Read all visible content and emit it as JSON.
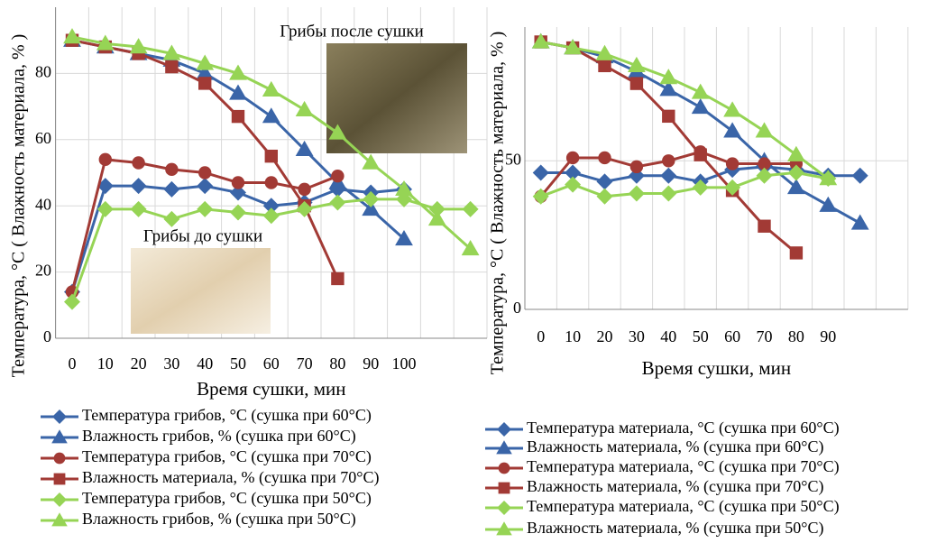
{
  "chart_data": [
    {
      "type": "line",
      "annotations": [
        "Грибы после сушки",
        "Грибы до сушки"
      ],
      "x_label": "Время сушки, мин",
      "y_label": "Температура, °С ( Влажность материала, % )",
      "categories": [
        "0",
        "10",
        "20",
        "30",
        "40",
        "50",
        "60",
        "70",
        "80",
        "90",
        "100",
        null,
        null
      ],
      "ylim": [
        0,
        100
      ],
      "yticks": [
        0,
        20,
        40,
        60,
        80
      ],
      "grid": true,
      "series": [
        {
          "name": "Температура грибов, °С (сушка при 60°С)",
          "color": "#3a65a8",
          "marker": "diamond",
          "values": [
            14,
            46,
            46,
            45,
            46,
            44,
            40,
            41,
            45,
            44,
            45,
            null,
            null
          ]
        },
        {
          "name": "Влажность грибов, % (сушка при 60°С)",
          "color": "#3a65a8",
          "marker": "triangle",
          "values": [
            90,
            88,
            86,
            84,
            80,
            74,
            67,
            57,
            47,
            39,
            30,
            null,
            null
          ]
        },
        {
          "name": "Температура грибов, °С (сушка при 70°С)",
          "color": "#a23a35",
          "marker": "circle",
          "values": [
            14,
            54,
            53,
            51,
            50,
            47,
            47,
            45,
            49,
            null,
            null,
            null,
            null
          ]
        },
        {
          "name": "Влажность  материала, % (сушка при 70°С)",
          "color": "#a23a35",
          "marker": "square",
          "values": [
            90,
            88,
            86,
            82,
            77,
            67,
            55,
            40,
            18,
            null,
            null,
            null,
            null
          ]
        },
        {
          "name": "Температура грибов, °С (сушка при 50°С)",
          "color": "#96d455",
          "marker": "diamond",
          "values": [
            11,
            39,
            39,
            36,
            39,
            38,
            37,
            39,
            41,
            42,
            42,
            39,
            39
          ]
        },
        {
          "name": "Влажность грибов, % (сушка при 50°С)",
          "color": "#96d455",
          "marker": "triangle",
          "values": [
            91,
            89,
            88,
            86,
            83,
            80,
            75,
            69,
            62,
            53,
            45,
            36,
            27
          ]
        }
      ]
    },
    {
      "type": "line",
      "x_label": "Время сушки, мин",
      "y_label": "Температура, °С ( Влажность материала, % )",
      "categories": [
        "0",
        "10",
        "20",
        "30",
        "40",
        "50",
        "60",
        "70",
        "80",
        "90",
        null,
        null
      ],
      "ylim": [
        0,
        95
      ],
      "yticks": [
        0,
        50
      ],
      "grid": true,
      "series": [
        {
          "name": "Температура материала, °С (сушка при 60°С)",
          "color": "#3a65a8",
          "marker": "diamond",
          "values": [
            46,
            46,
            43,
            45,
            45,
            43,
            47,
            48,
            47,
            45,
            45,
            null
          ]
        },
        {
          "name": "Влажность  материала, % (сушка при 60°С)",
          "color": "#3a65a8",
          "marker": "triangle",
          "values": [
            90,
            88,
            85,
            80,
            74,
            68,
            60,
            50,
            41,
            35,
            29,
            null
          ]
        },
        {
          "name": "Температура материала, °С (сушка при 70°С)",
          "color": "#a23a35",
          "marker": "circle",
          "values": [
            38,
            51,
            51,
            48,
            50,
            53,
            49,
            49,
            49,
            null,
            null,
            null
          ]
        },
        {
          "name": "Влажность  материала, % (сушка при 70°С)",
          "color": "#a23a35",
          "marker": "square",
          "values": [
            90,
            88,
            82,
            76,
            65,
            52,
            40,
            28,
            19,
            null,
            null,
            null
          ]
        },
        {
          "name": "Температура материала, °С (сушка при 50°С)",
          "color": "#96d455",
          "marker": "diamond",
          "values": [
            38,
            42,
            38,
            39,
            39,
            41,
            41,
            45,
            46,
            44,
            null,
            null
          ]
        },
        {
          "name": "Влажность материала, % (сушка при 50°С)",
          "color": "#96d455",
          "marker": "triangle",
          "values": [
            90,
            88,
            86,
            82,
            78,
            73,
            67,
            60,
            52,
            44,
            null,
            null
          ]
        }
      ]
    }
  ]
}
